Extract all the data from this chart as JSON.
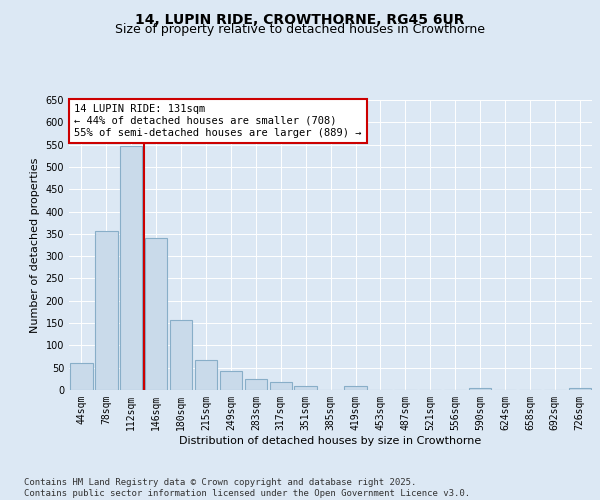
{
  "title_line1": "14, LUPIN RIDE, CROWTHORNE, RG45 6UR",
  "title_line2": "Size of property relative to detached houses in Crowthorne",
  "xlabel": "Distribution of detached houses by size in Crowthorne",
  "ylabel": "Number of detached properties",
  "categories": [
    "44sqm",
    "78sqm",
    "112sqm",
    "146sqm",
    "180sqm",
    "215sqm",
    "249sqm",
    "283sqm",
    "317sqm",
    "351sqm",
    "385sqm",
    "419sqm",
    "453sqm",
    "487sqm",
    "521sqm",
    "556sqm",
    "590sqm",
    "624sqm",
    "658sqm",
    "692sqm",
    "726sqm"
  ],
  "values": [
    60,
    357,
    547,
    340,
    157,
    68,
    42,
    25,
    18,
    10,
    0,
    9,
    0,
    0,
    0,
    0,
    4,
    0,
    0,
    0,
    4
  ],
  "bar_color": "#c9daea",
  "bar_edge_color": "#88aec8",
  "vline_x": 2.5,
  "vline_color": "#cc0000",
  "annotation_text": "14 LUPIN RIDE: 131sqm\n← 44% of detached houses are smaller (708)\n55% of semi-detached houses are larger (889) →",
  "annotation_box_color": "#ffffff",
  "annotation_box_edge": "#cc0000",
  "ylim": [
    0,
    650
  ],
  "yticks": [
    0,
    50,
    100,
    150,
    200,
    250,
    300,
    350,
    400,
    450,
    500,
    550,
    600,
    650
  ],
  "background_color": "#dce8f4",
  "plot_background": "#dce8f4",
  "footer_line1": "Contains HM Land Registry data © Crown copyright and database right 2025.",
  "footer_line2": "Contains public sector information licensed under the Open Government Licence v3.0.",
  "title_fontsize": 10,
  "subtitle_fontsize": 9,
  "axis_label_fontsize": 8,
  "tick_fontsize": 7,
  "annotation_fontsize": 7.5,
  "footer_fontsize": 6.5
}
